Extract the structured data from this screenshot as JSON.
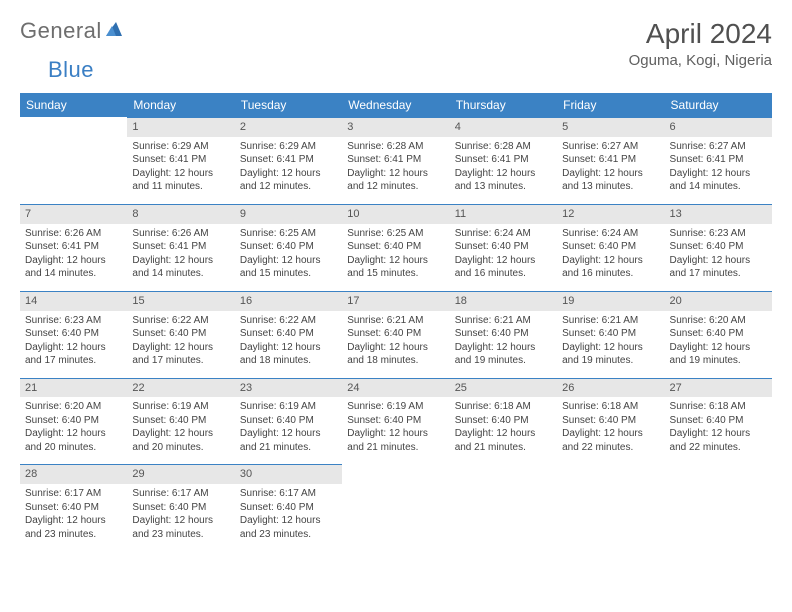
{
  "brand": {
    "name_gray": "General",
    "name_blue": "Blue"
  },
  "title": "April 2024",
  "location": "Oguma, Kogi, Nigeria",
  "colors": {
    "header_bg": "#3b82c4",
    "header_text": "#ffffff",
    "daynum_bg": "#e7e7e7",
    "daynum_border": "#3b82c4",
    "body_text": "#444444",
    "title_text": "#505050",
    "logo_gray": "#6e6e6e",
    "logo_blue": "#3b7fc4",
    "page_bg": "#ffffff"
  },
  "typography": {
    "month_title_pt": 28,
    "location_pt": 15,
    "weekday_header_pt": 12,
    "daynum_pt": 11,
    "body_pt": 10,
    "font_family": "Arial"
  },
  "layout": {
    "columns": 7,
    "rows": 5,
    "first_weekday": "Sunday"
  },
  "weekdays": [
    "Sunday",
    "Monday",
    "Tuesday",
    "Wednesday",
    "Thursday",
    "Friday",
    "Saturday"
  ],
  "weeks": [
    [
      {
        "blank": true
      },
      {
        "day": "1",
        "sunrise": "Sunrise: 6:29 AM",
        "sunset": "Sunset: 6:41 PM",
        "daylight": "Daylight: 12 hours and 11 minutes."
      },
      {
        "day": "2",
        "sunrise": "Sunrise: 6:29 AM",
        "sunset": "Sunset: 6:41 PM",
        "daylight": "Daylight: 12 hours and 12 minutes."
      },
      {
        "day": "3",
        "sunrise": "Sunrise: 6:28 AM",
        "sunset": "Sunset: 6:41 PM",
        "daylight": "Daylight: 12 hours and 12 minutes."
      },
      {
        "day": "4",
        "sunrise": "Sunrise: 6:28 AM",
        "sunset": "Sunset: 6:41 PM",
        "daylight": "Daylight: 12 hours and 13 minutes."
      },
      {
        "day": "5",
        "sunrise": "Sunrise: 6:27 AM",
        "sunset": "Sunset: 6:41 PM",
        "daylight": "Daylight: 12 hours and 13 minutes."
      },
      {
        "day": "6",
        "sunrise": "Sunrise: 6:27 AM",
        "sunset": "Sunset: 6:41 PM",
        "daylight": "Daylight: 12 hours and 14 minutes."
      }
    ],
    [
      {
        "day": "7",
        "sunrise": "Sunrise: 6:26 AM",
        "sunset": "Sunset: 6:41 PM",
        "daylight": "Daylight: 12 hours and 14 minutes."
      },
      {
        "day": "8",
        "sunrise": "Sunrise: 6:26 AM",
        "sunset": "Sunset: 6:41 PM",
        "daylight": "Daylight: 12 hours and 14 minutes."
      },
      {
        "day": "9",
        "sunrise": "Sunrise: 6:25 AM",
        "sunset": "Sunset: 6:40 PM",
        "daylight": "Daylight: 12 hours and 15 minutes."
      },
      {
        "day": "10",
        "sunrise": "Sunrise: 6:25 AM",
        "sunset": "Sunset: 6:40 PM",
        "daylight": "Daylight: 12 hours and 15 minutes."
      },
      {
        "day": "11",
        "sunrise": "Sunrise: 6:24 AM",
        "sunset": "Sunset: 6:40 PM",
        "daylight": "Daylight: 12 hours and 16 minutes."
      },
      {
        "day": "12",
        "sunrise": "Sunrise: 6:24 AM",
        "sunset": "Sunset: 6:40 PM",
        "daylight": "Daylight: 12 hours and 16 minutes."
      },
      {
        "day": "13",
        "sunrise": "Sunrise: 6:23 AM",
        "sunset": "Sunset: 6:40 PM",
        "daylight": "Daylight: 12 hours and 17 minutes."
      }
    ],
    [
      {
        "day": "14",
        "sunrise": "Sunrise: 6:23 AM",
        "sunset": "Sunset: 6:40 PM",
        "daylight": "Daylight: 12 hours and 17 minutes."
      },
      {
        "day": "15",
        "sunrise": "Sunrise: 6:22 AM",
        "sunset": "Sunset: 6:40 PM",
        "daylight": "Daylight: 12 hours and 17 minutes."
      },
      {
        "day": "16",
        "sunrise": "Sunrise: 6:22 AM",
        "sunset": "Sunset: 6:40 PM",
        "daylight": "Daylight: 12 hours and 18 minutes."
      },
      {
        "day": "17",
        "sunrise": "Sunrise: 6:21 AM",
        "sunset": "Sunset: 6:40 PM",
        "daylight": "Daylight: 12 hours and 18 minutes."
      },
      {
        "day": "18",
        "sunrise": "Sunrise: 6:21 AM",
        "sunset": "Sunset: 6:40 PM",
        "daylight": "Daylight: 12 hours and 19 minutes."
      },
      {
        "day": "19",
        "sunrise": "Sunrise: 6:21 AM",
        "sunset": "Sunset: 6:40 PM",
        "daylight": "Daylight: 12 hours and 19 minutes."
      },
      {
        "day": "20",
        "sunrise": "Sunrise: 6:20 AM",
        "sunset": "Sunset: 6:40 PM",
        "daylight": "Daylight: 12 hours and 19 minutes."
      }
    ],
    [
      {
        "day": "21",
        "sunrise": "Sunrise: 6:20 AM",
        "sunset": "Sunset: 6:40 PM",
        "daylight": "Daylight: 12 hours and 20 minutes."
      },
      {
        "day": "22",
        "sunrise": "Sunrise: 6:19 AM",
        "sunset": "Sunset: 6:40 PM",
        "daylight": "Daylight: 12 hours and 20 minutes."
      },
      {
        "day": "23",
        "sunrise": "Sunrise: 6:19 AM",
        "sunset": "Sunset: 6:40 PM",
        "daylight": "Daylight: 12 hours and 21 minutes."
      },
      {
        "day": "24",
        "sunrise": "Sunrise: 6:19 AM",
        "sunset": "Sunset: 6:40 PM",
        "daylight": "Daylight: 12 hours and 21 minutes."
      },
      {
        "day": "25",
        "sunrise": "Sunrise: 6:18 AM",
        "sunset": "Sunset: 6:40 PM",
        "daylight": "Daylight: 12 hours and 21 minutes."
      },
      {
        "day": "26",
        "sunrise": "Sunrise: 6:18 AM",
        "sunset": "Sunset: 6:40 PM",
        "daylight": "Daylight: 12 hours and 22 minutes."
      },
      {
        "day": "27",
        "sunrise": "Sunrise: 6:18 AM",
        "sunset": "Sunset: 6:40 PM",
        "daylight": "Daylight: 12 hours and 22 minutes."
      }
    ],
    [
      {
        "day": "28",
        "sunrise": "Sunrise: 6:17 AM",
        "sunset": "Sunset: 6:40 PM",
        "daylight": "Daylight: 12 hours and 23 minutes."
      },
      {
        "day": "29",
        "sunrise": "Sunrise: 6:17 AM",
        "sunset": "Sunset: 6:40 PM",
        "daylight": "Daylight: 12 hours and 23 minutes."
      },
      {
        "day": "30",
        "sunrise": "Sunrise: 6:17 AM",
        "sunset": "Sunset: 6:40 PM",
        "daylight": "Daylight: 12 hours and 23 minutes."
      },
      {
        "blank": true
      },
      {
        "blank": true
      },
      {
        "blank": true
      },
      {
        "blank": true
      }
    ]
  ]
}
